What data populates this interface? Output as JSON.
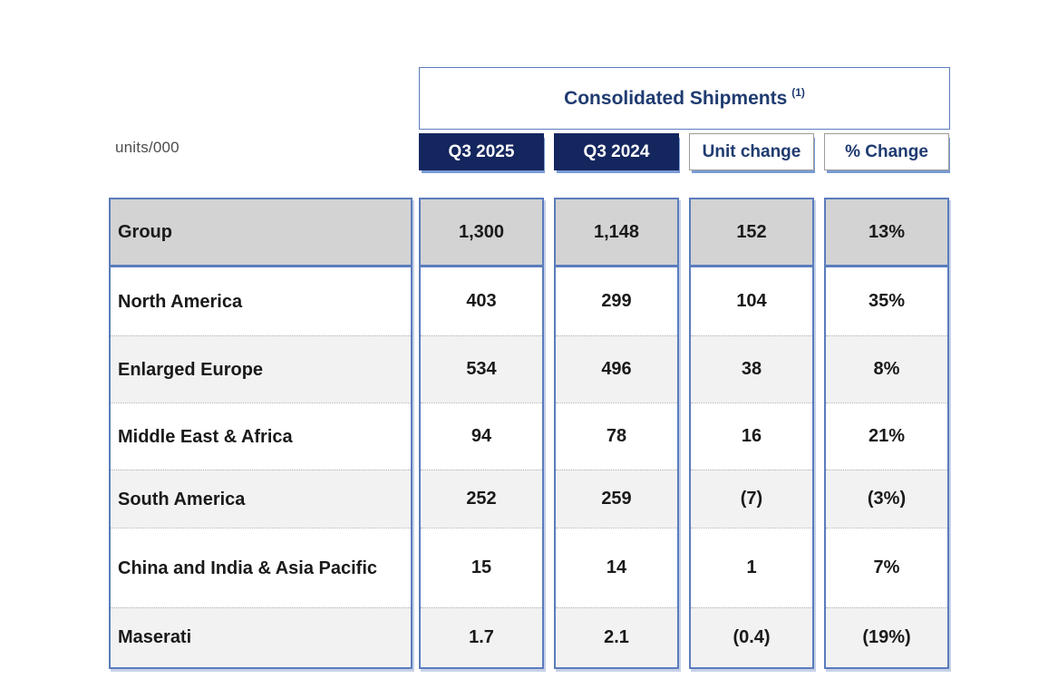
{
  "meta": {
    "units_label": "units/000"
  },
  "header": {
    "title": "Consolidated Shipments",
    "title_superscript": "(1)",
    "columns": [
      "Q3 2025",
      "Q3 2024",
      "Unit change",
      "% Change"
    ]
  },
  "table": {
    "row_labels_key": "region",
    "rows": [
      {
        "region": "Group",
        "q3_2025": "1,300",
        "q3_2024": "1,148",
        "unit_change": "152",
        "pct_change": "13%"
      },
      {
        "region": "North America",
        "q3_2025": "403",
        "q3_2024": "299",
        "unit_change": "104",
        "pct_change": "35%"
      },
      {
        "region": "Enlarged Europe",
        "q3_2025": "534",
        "q3_2024": "496",
        "unit_change": "38",
        "pct_change": "8%"
      },
      {
        "region": "Middle East & Africa",
        "q3_2025": "94",
        "q3_2024": "78",
        "unit_change": "16",
        "pct_change": "21%"
      },
      {
        "region": "South America",
        "q3_2025": "252",
        "q3_2024": "259",
        "unit_change": "(7)",
        "pct_change": "(3%)"
      },
      {
        "region": "China and India & Asia Pacific",
        "q3_2025": "15",
        "q3_2024": "14",
        "unit_change": "1",
        "pct_change": "7%"
      },
      {
        "region": "Maserati",
        "q3_2025": "1.7",
        "q3_2024": "2.1",
        "unit_change": "(0.4)",
        "pct_change": "(19%)"
      }
    ]
  },
  "colors": {
    "navy_header_bg": "#14265e",
    "title_text": "#1f3b70",
    "border_blue": "#5b7cbc",
    "group_row_bg": "#d3d3d3",
    "alt_row_bg": "#f2f2f2"
  }
}
